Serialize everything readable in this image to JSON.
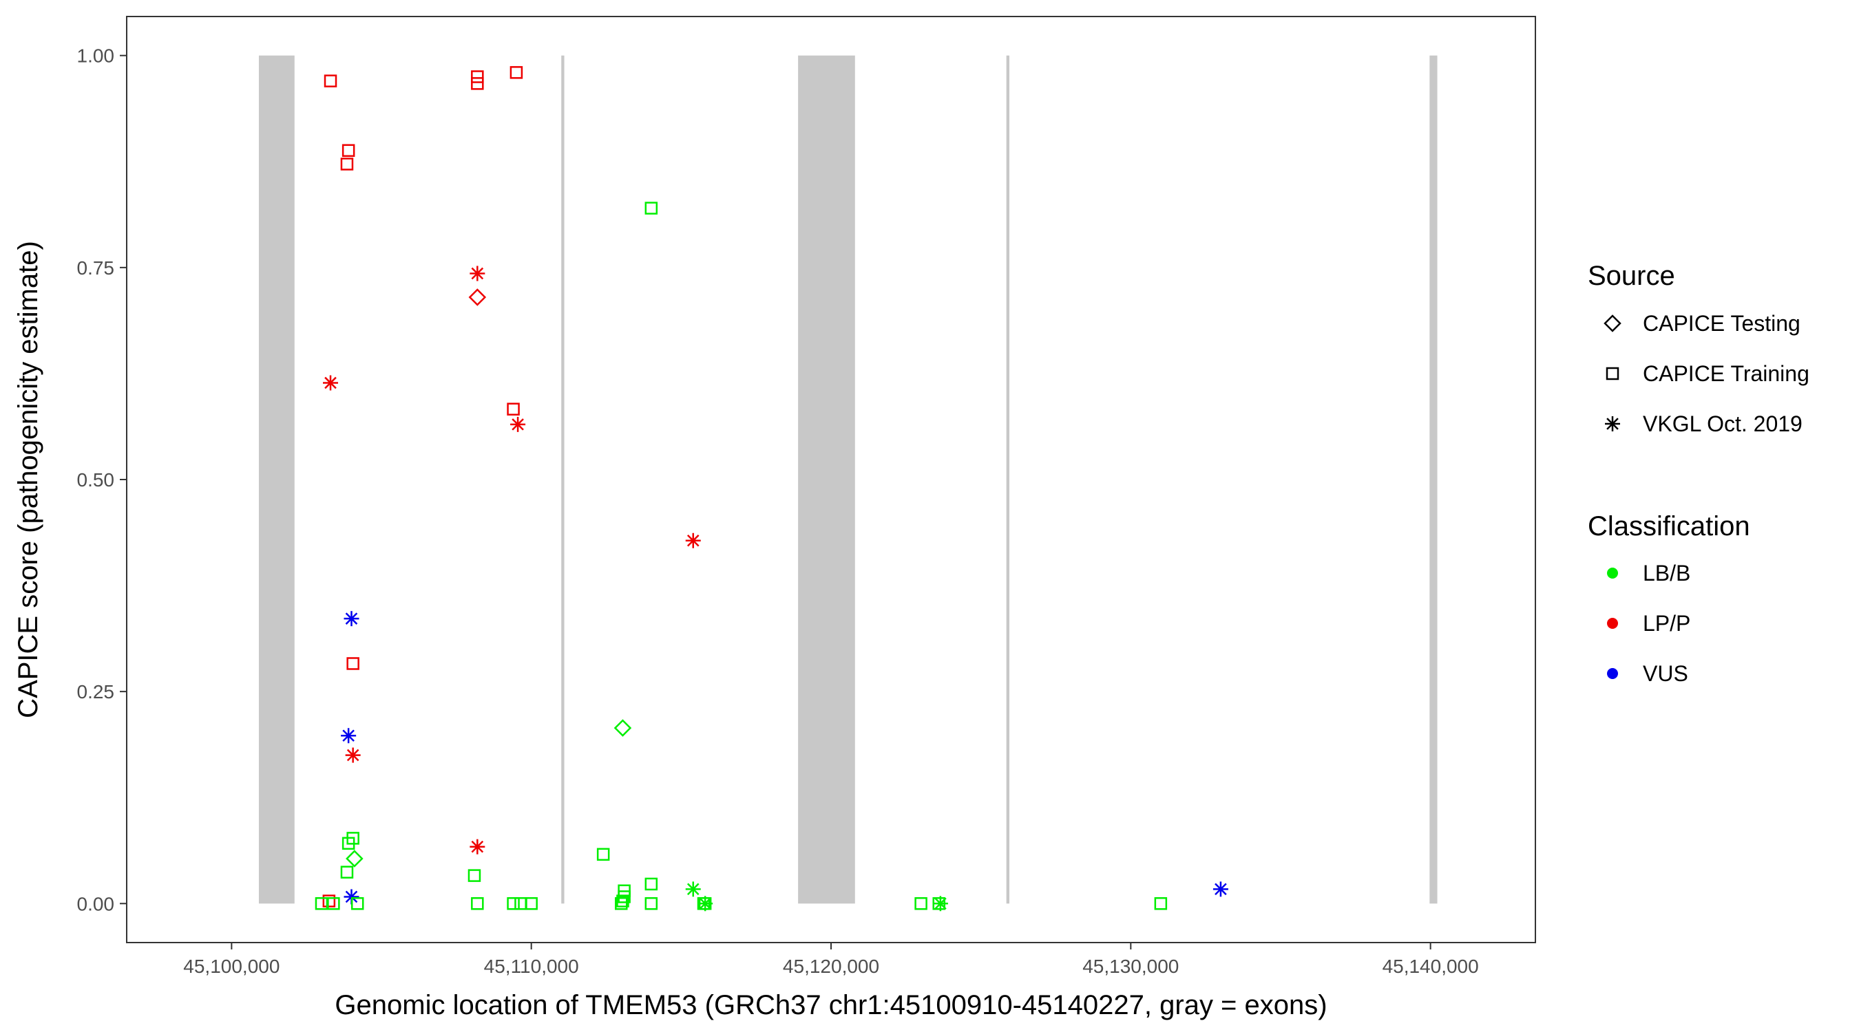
{
  "chart_data": {
    "type": "scatter",
    "title": "",
    "xlabel": "Genomic location of TMEM53 (GRCh37 chr1:45100910-45140227, gray = exons)",
    "ylabel": "CAPICE score (pathogenicity estimate)",
    "xlim": [
      45096500,
      45143500
    ],
    "ylim": [
      -0.046,
      1.046
    ],
    "x_ticks": [
      45100000,
      45110000,
      45120000,
      45130000,
      45140000
    ],
    "x_tick_labels": [
      "45,100,000",
      "45,110,000",
      "45,120,000",
      "45,130,000",
      "45,140,000"
    ],
    "y_ticks": [
      0,
      0.25,
      0.5,
      0.75,
      1.0
    ],
    "y_tick_labels": [
      "0.00",
      "0.25",
      "0.50",
      "0.75",
      "1.00"
    ],
    "grid": false,
    "exons": [
      [
        45100910,
        45102100
      ],
      [
        45111000,
        45111100
      ],
      [
        45118900,
        45120800
      ],
      [
        45125850,
        45125950
      ],
      [
        45139970,
        45140227
      ]
    ],
    "exon_color": "#c8c8c8",
    "legend_position": "right",
    "legend_source": {
      "title": "Source",
      "entries": [
        {
          "label": "CAPICE Testing",
          "shape": "diamond"
        },
        {
          "label": "CAPICE Training",
          "shape": "square"
        },
        {
          "label": "VKGL Oct. 2019",
          "shape": "asterisk"
        }
      ]
    },
    "legend_classification": {
      "title": "Classification",
      "entries": [
        {
          "label": "LB/B",
          "color": "#00ee00"
        },
        {
          "label": "LP/P",
          "color": "#ee0000"
        },
        {
          "label": "VUS",
          "color": "#0000ee"
        }
      ]
    },
    "points": [
      {
        "x": 45103300,
        "y": 0.97,
        "source": "CAPICE Training",
        "classification": "LP/P"
      },
      {
        "x": 45103900,
        "y": 0.888,
        "source": "CAPICE Training",
        "classification": "LP/P"
      },
      {
        "x": 45103850,
        "y": 0.872,
        "source": "CAPICE Training",
        "classification": "LP/P"
      },
      {
        "x": 45108200,
        "y": 0.975,
        "source": "CAPICE Training",
        "classification": "LP/P"
      },
      {
        "x": 45108200,
        "y": 0.967,
        "source": "CAPICE Training",
        "classification": "LP/P"
      },
      {
        "x": 45109500,
        "y": 0.98,
        "source": "CAPICE Training",
        "classification": "LP/P"
      },
      {
        "x": 45109400,
        "y": 0.583,
        "source": "CAPICE Training",
        "classification": "LP/P"
      },
      {
        "x": 45104050,
        "y": 0.283,
        "source": "CAPICE Training",
        "classification": "LP/P"
      },
      {
        "x": 45103250,
        "y": 0.003,
        "source": "CAPICE Training",
        "classification": "LP/P"
      },
      {
        "x": 45108200,
        "y": 0.715,
        "source": "CAPICE Testing",
        "classification": "LP/P"
      },
      {
        "x": 45108200,
        "y": 0.743,
        "source": "VKGL Oct. 2019",
        "classification": "LP/P"
      },
      {
        "x": 45103300,
        "y": 0.614,
        "source": "VKGL Oct. 2019",
        "classification": "LP/P"
      },
      {
        "x": 45109550,
        "y": 0.565,
        "source": "VKGL Oct. 2019",
        "classification": "LP/P"
      },
      {
        "x": 45115400,
        "y": 0.428,
        "source": "VKGL Oct. 2019",
        "classification": "LP/P"
      },
      {
        "x": 45104050,
        "y": 0.175,
        "source": "VKGL Oct. 2019",
        "classification": "LP/P"
      },
      {
        "x": 45108200,
        "y": 0.067,
        "source": "VKGL Oct. 2019",
        "classification": "LP/P"
      },
      {
        "x": 45104000,
        "y": 0.336,
        "source": "VKGL Oct. 2019",
        "classification": "VUS"
      },
      {
        "x": 45103900,
        "y": 0.198,
        "source": "VKGL Oct. 2019",
        "classification": "VUS"
      },
      {
        "x": 45104000,
        "y": 0.008,
        "source": "VKGL Oct. 2019",
        "classification": "VUS"
      },
      {
        "x": 45133000,
        "y": 0.017,
        "source": "VKGL Oct. 2019",
        "classification": "VUS"
      },
      {
        "x": 45114000,
        "y": 0.82,
        "source": "CAPICE Training",
        "classification": "LB/B"
      },
      {
        "x": 45104050,
        "y": 0.077,
        "source": "CAPICE Training",
        "classification": "LB/B"
      },
      {
        "x": 45103900,
        "y": 0.071,
        "source": "CAPICE Training",
        "classification": "LB/B"
      },
      {
        "x": 45103850,
        "y": 0.037,
        "source": "CAPICE Training",
        "classification": "LB/B"
      },
      {
        "x": 45108100,
        "y": 0.033,
        "source": "CAPICE Training",
        "classification": "LB/B"
      },
      {
        "x": 45112400,
        "y": 0.058,
        "source": "CAPICE Training",
        "classification": "LB/B"
      },
      {
        "x": 45114000,
        "y": 0.023,
        "source": "CAPICE Training",
        "classification": "LB/B"
      },
      {
        "x": 45113100,
        "y": 0.015,
        "source": "CAPICE Training",
        "classification": "LB/B"
      },
      {
        "x": 45113100,
        "y": 0.008,
        "source": "CAPICE Training",
        "classification": "LB/B"
      },
      {
        "x": 45113050,
        "y": 0.003,
        "source": "CAPICE Training",
        "classification": "LB/B"
      },
      {
        "x": 45103000,
        "y": 0.0,
        "source": "CAPICE Training",
        "classification": "LB/B"
      },
      {
        "x": 45103400,
        "y": 0.0,
        "source": "CAPICE Training",
        "classification": "LB/B"
      },
      {
        "x": 45104200,
        "y": 0.0,
        "source": "CAPICE Training",
        "classification": "LB/B"
      },
      {
        "x": 45108200,
        "y": 0.0,
        "source": "CAPICE Training",
        "classification": "LB/B"
      },
      {
        "x": 45109400,
        "y": 0.0,
        "source": "CAPICE Training",
        "classification": "LB/B"
      },
      {
        "x": 45109650,
        "y": 0.0,
        "source": "CAPICE Training",
        "classification": "LB/B"
      },
      {
        "x": 45110000,
        "y": 0.0,
        "source": "CAPICE Training",
        "classification": "LB/B"
      },
      {
        "x": 45113000,
        "y": 0.0,
        "source": "CAPICE Training",
        "classification": "LB/B"
      },
      {
        "x": 45114000,
        "y": 0.0,
        "source": "CAPICE Training",
        "classification": "LB/B"
      },
      {
        "x": 45115750,
        "y": 0.0,
        "source": "CAPICE Training",
        "classification": "LB/B"
      },
      {
        "x": 45115800,
        "y": 0.0,
        "source": "CAPICE Training",
        "classification": "LB/B"
      },
      {
        "x": 45123000,
        "y": 0.0,
        "source": "CAPICE Training",
        "classification": "LB/B"
      },
      {
        "x": 45123600,
        "y": 0.0,
        "source": "CAPICE Training",
        "classification": "LB/B"
      },
      {
        "x": 45131000,
        "y": 0.0,
        "source": "CAPICE Training",
        "classification": "LB/B"
      },
      {
        "x": 45104100,
        "y": 0.053,
        "source": "CAPICE Testing",
        "classification": "LB/B"
      },
      {
        "x": 45113050,
        "y": 0.207,
        "source": "CAPICE Testing",
        "classification": "LB/B"
      },
      {
        "x": 45115400,
        "y": 0.017,
        "source": "VKGL Oct. 2019",
        "classification": "LB/B"
      },
      {
        "x": 45115800,
        "y": 0.0,
        "source": "VKGL Oct. 2019",
        "classification": "LB/B"
      },
      {
        "x": 45123650,
        "y": 0.0,
        "source": "VKGL Oct. 2019",
        "classification": "LB/B"
      }
    ]
  }
}
